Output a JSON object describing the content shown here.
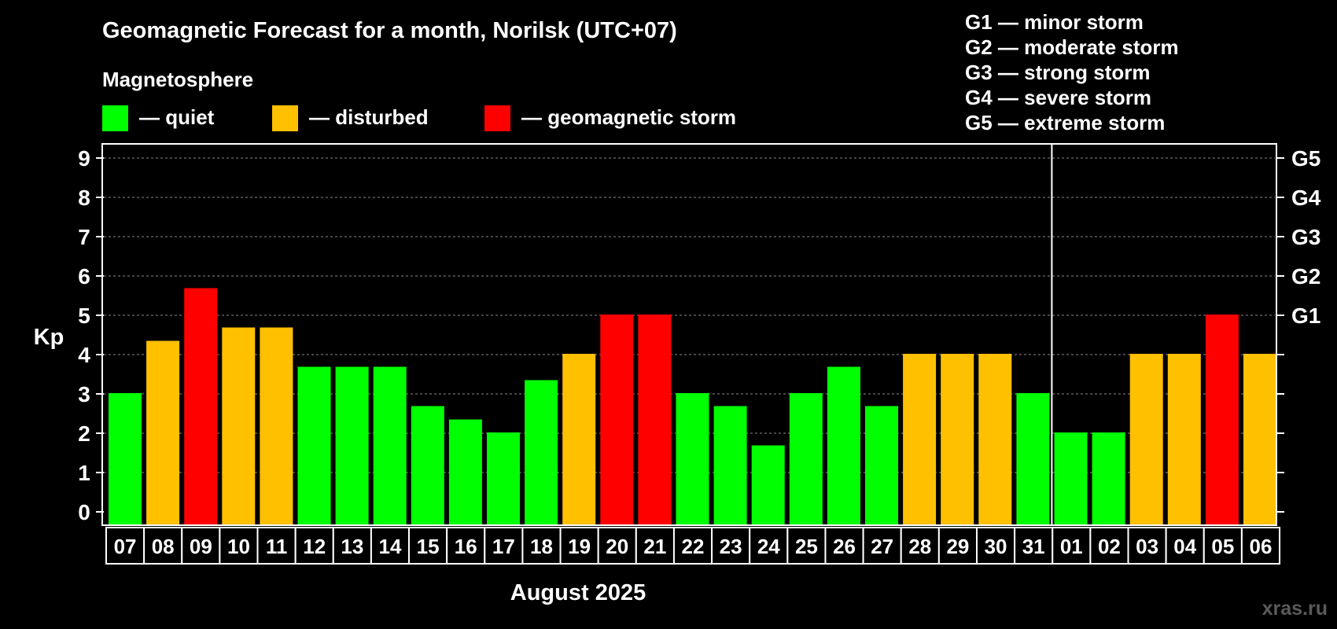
{
  "chart_data": {
    "type": "bar",
    "title": "Geomagnetic Forecast for a month, Norilsk (UTC+07)",
    "legend_title": "Magnetosphere",
    "legend": [
      {
        "key": "quiet",
        "label": "— quiet",
        "color": "#00ff00"
      },
      {
        "key": "disturbed",
        "label": "— disturbed",
        "color": "#ffc000"
      },
      {
        "key": "storm",
        "label": "— geomagnetic storm",
        "color": "#ff0000"
      }
    ],
    "storm_scale": [
      "G1 — minor storm",
      "G2 — moderate storm",
      "G3 — strong storm",
      "G4 — severe storm",
      "G5 — extreme storm"
    ],
    "ylabel": "Kp",
    "xlabel": "August 2025",
    "ylim": [
      0,
      9
    ],
    "yticks": [
      "0",
      "1",
      "2",
      "3",
      "4",
      "5",
      "6",
      "7",
      "8",
      "9"
    ],
    "right_ticks": [
      {
        "value": 5,
        "label": "G1"
      },
      {
        "value": 6,
        "label": "G2"
      },
      {
        "value": 7,
        "label": "G3"
      },
      {
        "value": 8,
        "label": "G4"
      },
      {
        "value": 9,
        "label": "G5"
      }
    ],
    "grid": true,
    "month_divider_after": "31",
    "categories": [
      "07",
      "08",
      "09",
      "10",
      "11",
      "12",
      "13",
      "14",
      "15",
      "16",
      "17",
      "18",
      "19",
      "20",
      "21",
      "22",
      "23",
      "24",
      "25",
      "26",
      "27",
      "28",
      "29",
      "30",
      "31",
      "01",
      "02",
      "03",
      "04",
      "05",
      "06"
    ],
    "values": [
      3.0,
      4.33,
      5.67,
      4.67,
      4.67,
      3.67,
      3.67,
      3.67,
      2.67,
      2.33,
      2.0,
      3.33,
      4.0,
      5.0,
      5.0,
      3.0,
      2.67,
      1.67,
      3.0,
      3.67,
      2.67,
      4.0,
      4.0,
      4.0,
      3.0,
      2.0,
      2.0,
      4.0,
      4.0,
      5.0,
      4.0
    ],
    "status": [
      "quiet",
      "disturbed",
      "storm",
      "disturbed",
      "disturbed",
      "quiet",
      "quiet",
      "quiet",
      "quiet",
      "quiet",
      "quiet",
      "quiet",
      "disturbed",
      "storm",
      "storm",
      "quiet",
      "quiet",
      "quiet",
      "quiet",
      "quiet",
      "quiet",
      "disturbed",
      "disturbed",
      "disturbed",
      "quiet",
      "quiet",
      "quiet",
      "disturbed",
      "disturbed",
      "storm",
      "disturbed"
    ]
  },
  "watermark": "xras.ru"
}
